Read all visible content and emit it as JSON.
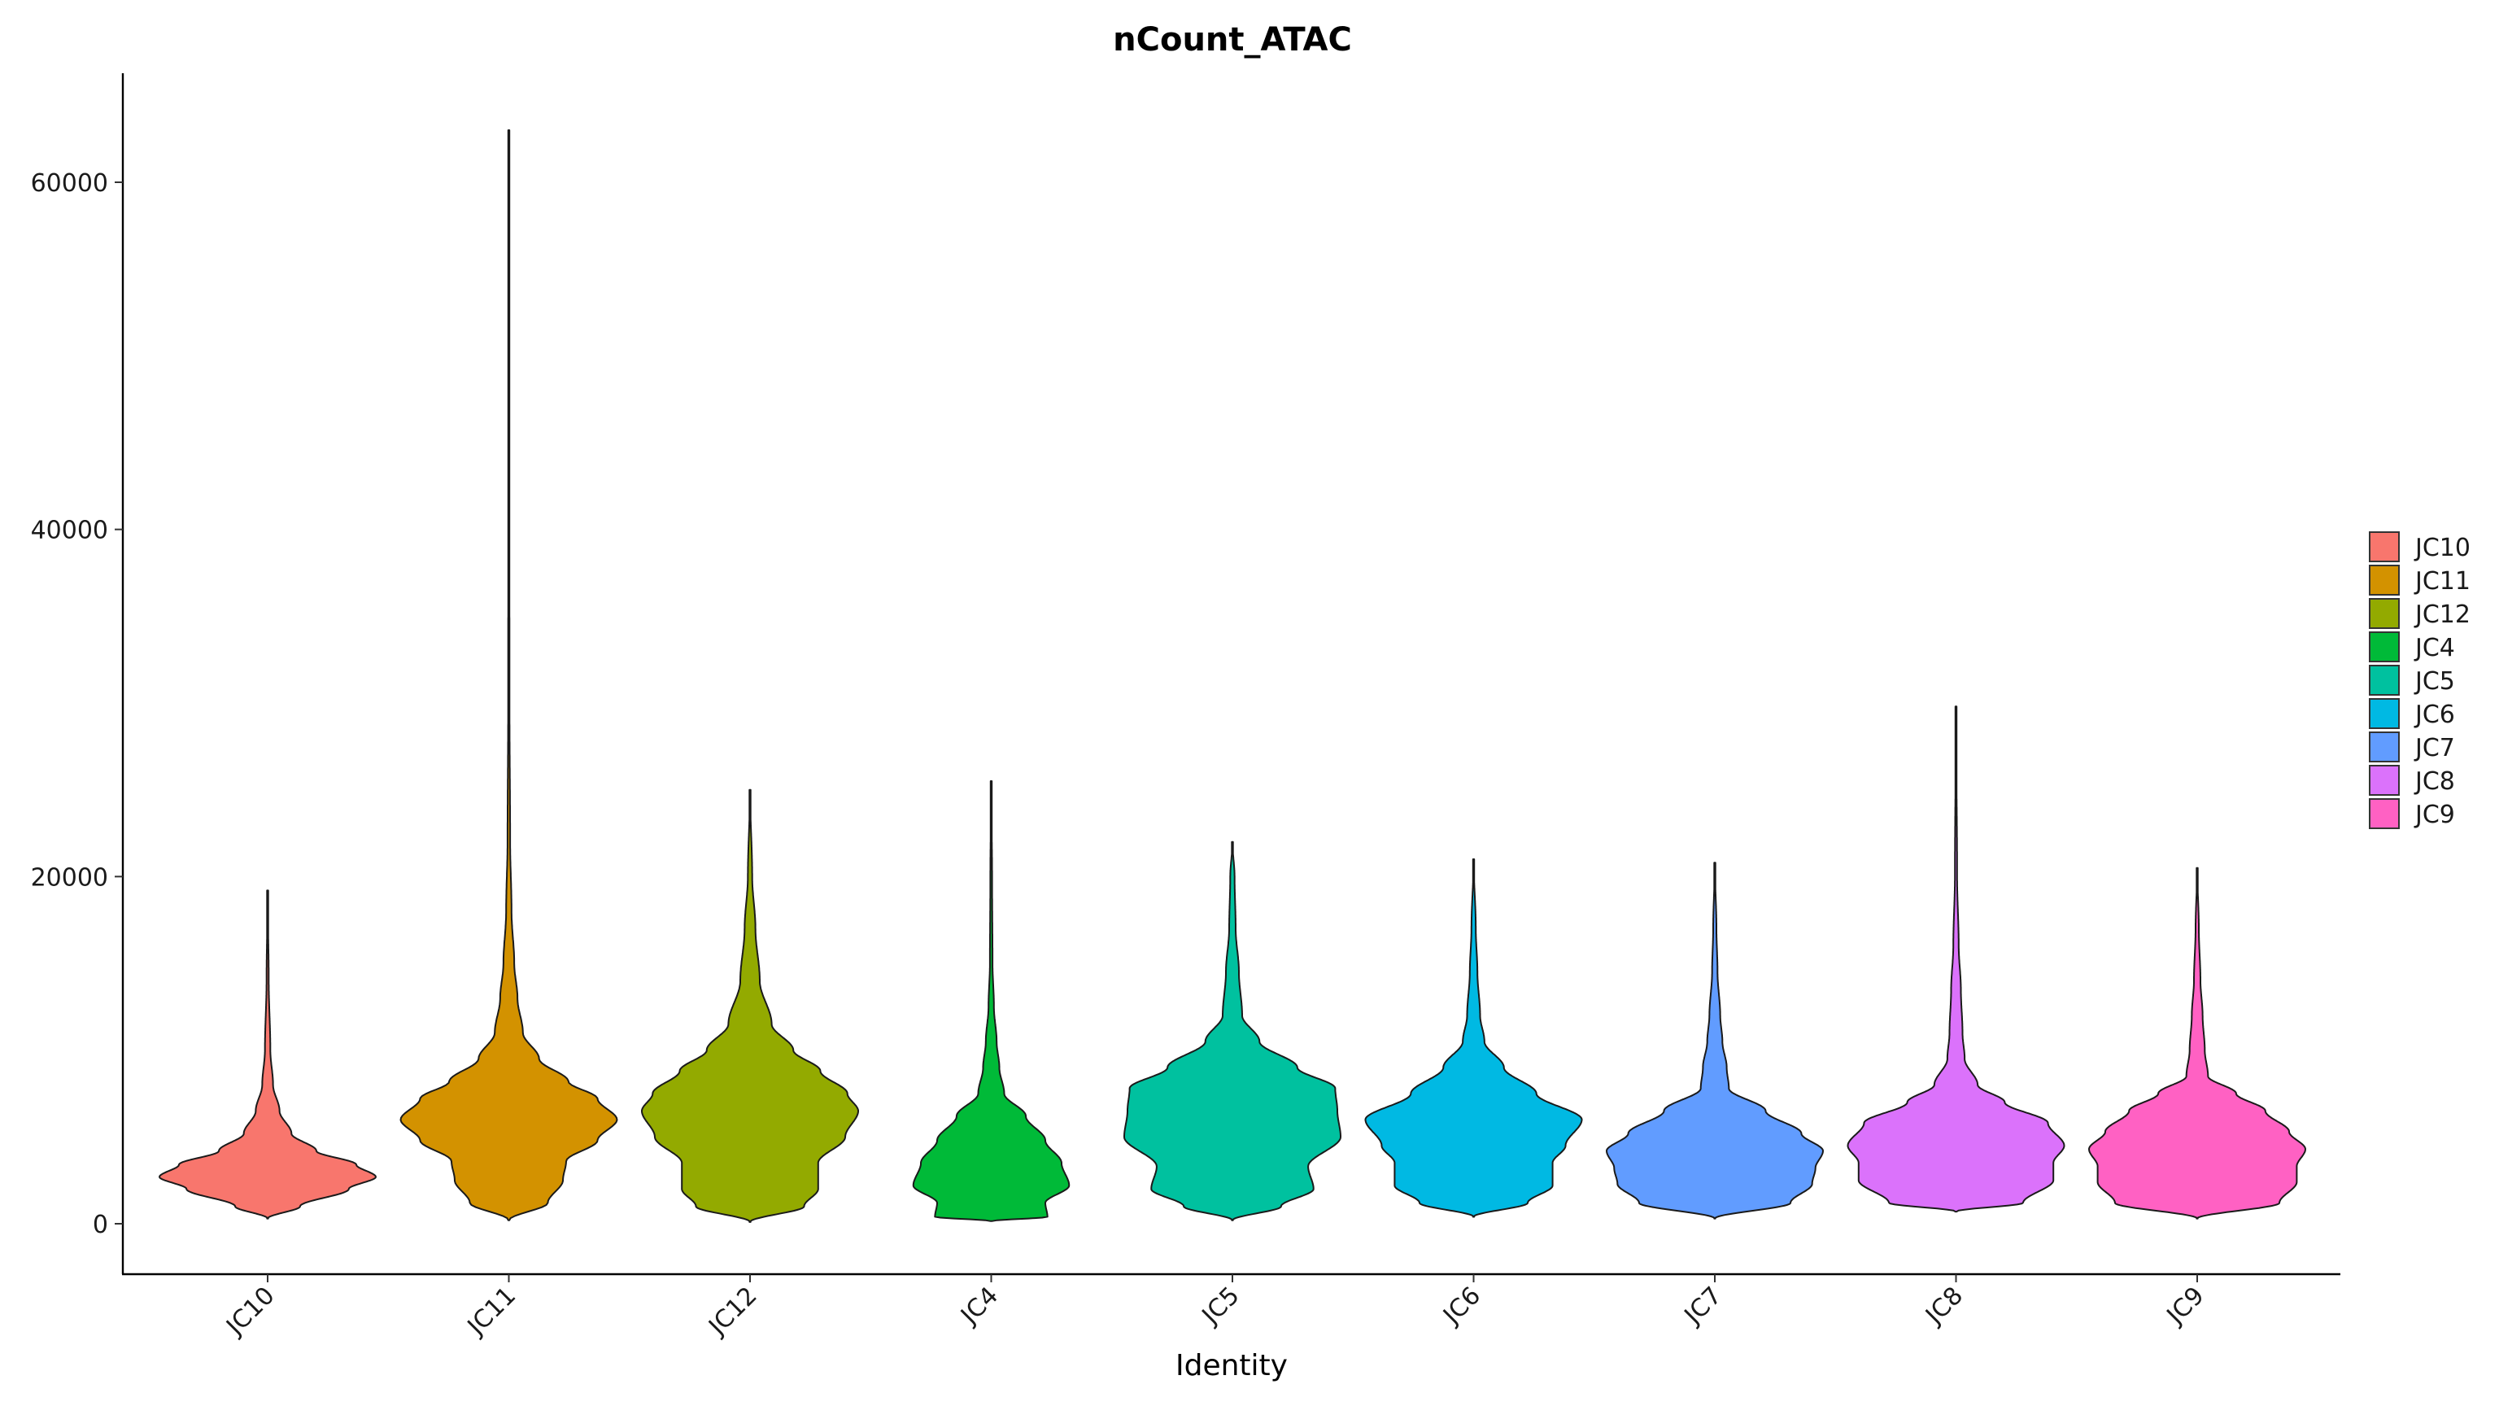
{
  "chart_data": {
    "type": "violin",
    "title": "nCount_ATAC",
    "xlabel": "Identity",
    "ylabel": "",
    "ylim": [
      -2800,
      66000
    ],
    "yticks": [
      0,
      20000,
      40000,
      60000
    ],
    "ytick_labels": [
      "0",
      "20000",
      "40000",
      "60000"
    ],
    "categories": [
      "JC10",
      "JC11",
      "JC12",
      "JC4",
      "JC5",
      "JC6",
      "JC7",
      "JC8",
      "JC9"
    ],
    "grid": false,
    "legend_position": "right",
    "series": [
      {
        "name": "JC10",
        "color": "#F8766D",
        "min": 300,
        "max": 19200,
        "profile": [
          [
            300,
            0
          ],
          [
            1000,
            0.3
          ],
          [
            2000,
            0.75
          ],
          [
            2700,
            1.0
          ],
          [
            3400,
            0.82
          ],
          [
            4200,
            0.45
          ],
          [
            5200,
            0.22
          ],
          [
            6500,
            0.11
          ],
          [
            8000,
            0.05
          ],
          [
            10000,
            0.025
          ],
          [
            14000,
            0.01
          ],
          [
            19200,
            0
          ]
        ]
      },
      {
        "name": "JC11",
        "color": "#D39200",
        "min": 200,
        "max": 63000,
        "profile": [
          [
            200,
            0
          ],
          [
            1200,
            0.36
          ],
          [
            2500,
            0.5
          ],
          [
            3600,
            0.53
          ],
          [
            4800,
            0.82
          ],
          [
            6000,
            1.0
          ],
          [
            7200,
            0.82
          ],
          [
            8200,
            0.55
          ],
          [
            9500,
            0.28
          ],
          [
            11000,
            0.13
          ],
          [
            13000,
            0.08
          ],
          [
            15000,
            0.05
          ],
          [
            18000,
            0.025
          ],
          [
            22000,
            0.012
          ],
          [
            30000,
            0.006
          ],
          [
            63000,
            0
          ]
        ]
      },
      {
        "name": "JC12",
        "color": "#93AA00",
        "min": 100,
        "max": 25000,
        "profile": [
          [
            100,
            0
          ],
          [
            1000,
            0.5
          ],
          [
            2000,
            0.63
          ],
          [
            3500,
            0.63
          ],
          [
            5000,
            0.88
          ],
          [
            6500,
            1.0
          ],
          [
            7500,
            0.9
          ],
          [
            8800,
            0.65
          ],
          [
            10000,
            0.4
          ],
          [
            11500,
            0.2
          ],
          [
            14000,
            0.09
          ],
          [
            17000,
            0.05
          ],
          [
            20000,
            0.02
          ],
          [
            25000,
            0
          ]
        ]
      },
      {
        "name": "JC4",
        "color": "#00BA38",
        "min": 150,
        "max": 25500,
        "profile": [
          [
            150,
            0
          ],
          [
            400,
            0.52
          ],
          [
            1200,
            0.5
          ],
          [
            2200,
            0.72
          ],
          [
            3500,
            0.65
          ],
          [
            4800,
            0.5
          ],
          [
            6200,
            0.32
          ],
          [
            7500,
            0.12
          ],
          [
            9000,
            0.075
          ],
          [
            10500,
            0.05
          ],
          [
            12500,
            0.025
          ],
          [
            15000,
            0.012
          ],
          [
            20000,
            0.008
          ],
          [
            25500,
            0
          ]
        ]
      },
      {
        "name": "JC5",
        "color": "#00C19F",
        "min": 200,
        "max": 22000,
        "profile": [
          [
            200,
            0
          ],
          [
            1000,
            0.45
          ],
          [
            2000,
            0.75
          ],
          [
            3300,
            0.7
          ],
          [
            5000,
            1.0
          ],
          [
            6500,
            0.97
          ],
          [
            7800,
            0.95
          ],
          [
            9000,
            0.6
          ],
          [
            10500,
            0.25
          ],
          [
            12000,
            0.09
          ],
          [
            14500,
            0.06
          ],
          [
            17000,
            0.03
          ],
          [
            20000,
            0.02
          ],
          [
            22000,
            0
          ]
        ]
      },
      {
        "name": "JC6",
        "color": "#00B9E3",
        "min": 400,
        "max": 21000,
        "profile": [
          [
            400,
            0
          ],
          [
            1200,
            0.5
          ],
          [
            2200,
            0.73
          ],
          [
            3500,
            0.73
          ],
          [
            4500,
            0.85
          ],
          [
            6000,
            1.0
          ],
          [
            7500,
            0.58
          ],
          [
            9000,
            0.28
          ],
          [
            10500,
            0.1
          ],
          [
            12000,
            0.06
          ],
          [
            14500,
            0.035
          ],
          [
            17000,
            0.02
          ],
          [
            21000,
            0
          ]
        ]
      },
      {
        "name": "JC7",
        "color": "#619CFF",
        "min": 300,
        "max": 20800,
        "profile": [
          [
            300,
            0
          ],
          [
            1200,
            0.7
          ],
          [
            2300,
            0.9
          ],
          [
            3200,
            0.93
          ],
          [
            4200,
            1.0
          ],
          [
            5200,
            0.8
          ],
          [
            6500,
            0.47
          ],
          [
            7800,
            0.13
          ],
          [
            9000,
            0.11
          ],
          [
            10500,
            0.07
          ],
          [
            12000,
            0.05
          ],
          [
            14500,
            0.025
          ],
          [
            17000,
            0.015
          ],
          [
            20800,
            0
          ]
        ]
      },
      {
        "name": "JC8",
        "color": "#DB72FB",
        "min": 700,
        "max": 29800,
        "profile": [
          [
            700,
            0
          ],
          [
            1200,
            0.62
          ],
          [
            2500,
            0.9
          ],
          [
            3500,
            0.9
          ],
          [
            4500,
            1.0
          ],
          [
            5800,
            0.85
          ],
          [
            7000,
            0.45
          ],
          [
            8000,
            0.2
          ],
          [
            9500,
            0.08
          ],
          [
            11000,
            0.06
          ],
          [
            13500,
            0.045
          ],
          [
            16000,
            0.025
          ],
          [
            20000,
            0.01
          ],
          [
            29800,
            0
          ]
        ]
      },
      {
        "name": "JC9",
        "color": "#FF61C3",
        "min": 300,
        "max": 20500,
        "profile": [
          [
            300,
            0
          ],
          [
            1200,
            0.76
          ],
          [
            2400,
            0.92
          ],
          [
            3300,
            0.92
          ],
          [
            4300,
            1.0
          ],
          [
            5300,
            0.85
          ],
          [
            6500,
            0.63
          ],
          [
            7500,
            0.36
          ],
          [
            8500,
            0.1
          ],
          [
            10000,
            0.07
          ],
          [
            12000,
            0.05
          ],
          [
            14000,
            0.03
          ],
          [
            17000,
            0.015
          ],
          [
            20500,
            0
          ]
        ]
      }
    ]
  }
}
